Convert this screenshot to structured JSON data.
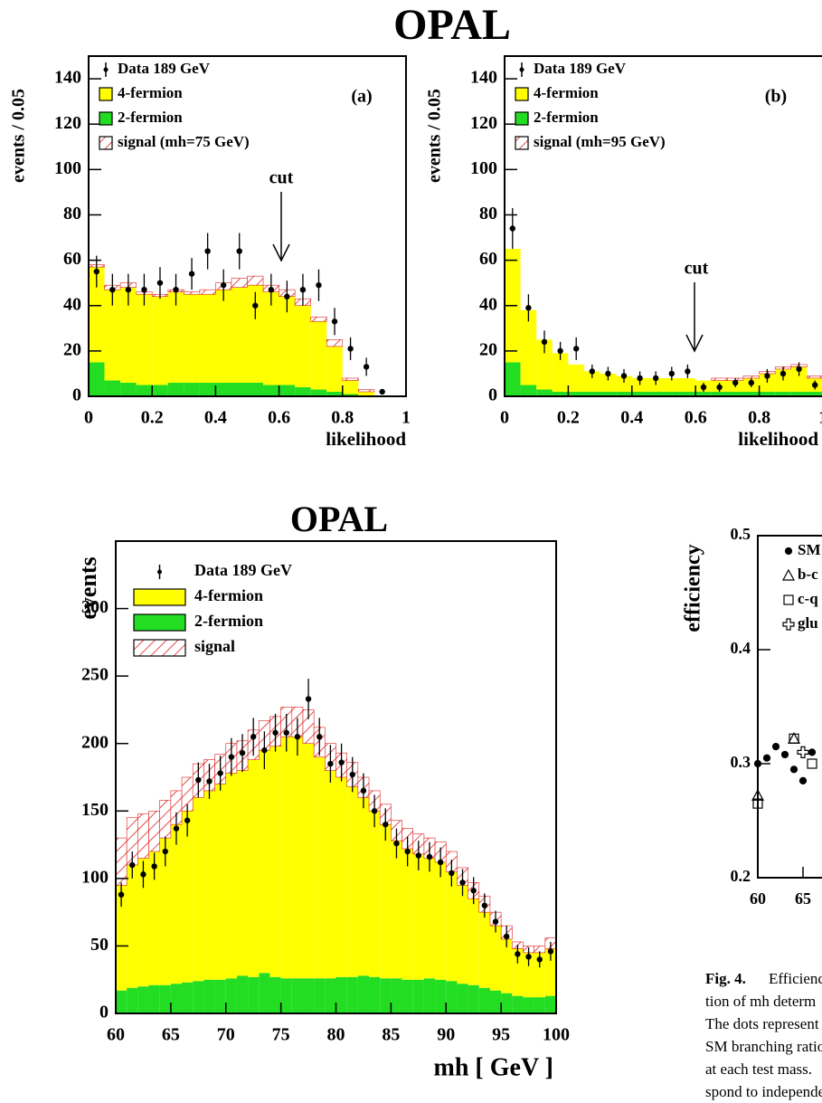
{
  "chart_data": [
    {
      "type": "histogram",
      "title": "OPAL",
      "y_label": "events / 0.05",
      "x_label": "likelihood",
      "annotations": [
        "(a)",
        "cut"
      ],
      "bins": [
        0,
        0.05,
        0.1,
        0.15,
        0.2,
        0.25,
        0.3,
        0.35,
        0.4,
        0.45,
        0.5,
        0.55,
        0.6,
        0.65,
        0.7,
        0.75,
        0.8,
        0.85,
        0.9,
        0.95,
        1
      ],
      "xlim": [
        0,
        1
      ],
      "xticks": [
        0,
        0.2,
        0.4,
        0.6,
        0.8,
        1
      ],
      "ylim": [
        0,
        150
      ],
      "yticks": [
        0,
        20,
        40,
        60,
        80,
        100,
        120,
        140
      ],
      "series": [
        {
          "name": "Data 189 GeV",
          "color": "#000000",
          "style": "points",
          "values": [
            55,
            47,
            47,
            47,
            50,
            47,
            54,
            64,
            49,
            64,
            40,
            47,
            44,
            47,
            49,
            33,
            21,
            13,
            2,
            null
          ],
          "errors": [
            7,
            7,
            7,
            7,
            7,
            7,
            7,
            8,
            7,
            8,
            6,
            7,
            7,
            7,
            7,
            6,
            5,
            4,
            1,
            null
          ]
        },
        {
          "name": "4-fermion",
          "color": "#ffff00",
          "values": [
            42,
            40,
            42,
            40,
            39,
            40,
            39,
            39,
            41,
            42,
            43,
            41,
            39,
            36,
            30,
            20,
            6,
            2,
            0,
            0
          ]
        },
        {
          "name": "2-fermion",
          "color": "#22dd22",
          "values": [
            15,
            7,
            6,
            5,
            5,
            6,
            6,
            6,
            6,
            6,
            6,
            5,
            5,
            4,
            3,
            2,
            1,
            0,
            0,
            0
          ]
        },
        {
          "name": "signal (mh=75 GeV)",
          "color": "#e02020",
          "hatch": true,
          "values": [
            1,
            2,
            2,
            1,
            1,
            1,
            1,
            2,
            3,
            4,
            4,
            3,
            3,
            3,
            2,
            3,
            1,
            1,
            0,
            0
          ]
        }
      ]
    },
    {
      "type": "histogram",
      "y_label": "events / 0.05",
      "x_label": "likelihood",
      "annotations": [
        "(b)",
        "cut"
      ],
      "bins": [
        0,
        0.05,
        0.1,
        0.15,
        0.2,
        0.25,
        0.3,
        0.35,
        0.4,
        0.45,
        0.5,
        0.55,
        0.6,
        0.65,
        0.7,
        0.75,
        0.8,
        0.85,
        0.9,
        0.95,
        1
      ],
      "xlim": [
        0,
        1
      ],
      "xticks": [
        0,
        0.2,
        0.4,
        0.6,
        0.8,
        1
      ],
      "ylim": [
        0,
        150
      ],
      "yticks": [
        0,
        20,
        40,
        60,
        80,
        100,
        120,
        140
      ],
      "series": [
        {
          "name": "Data 189 GeV",
          "color": "#000000",
          "style": "points",
          "values": [
            74,
            39,
            24,
            20,
            21,
            11,
            10,
            9,
            8,
            8,
            10,
            11,
            4,
            4,
            6,
            6,
            9,
            10,
            12,
            5
          ],
          "errors": [
            9,
            6,
            5,
            4,
            5,
            3,
            3,
            3,
            3,
            3,
            3,
            3,
            2,
            2,
            2,
            2,
            3,
            3,
            3,
            2
          ]
        },
        {
          "name": "4-fermion",
          "color": "#ffff00",
          "values": [
            50,
            33,
            22,
            17,
            12,
            9,
            8,
            7,
            6,
            6,
            6,
            6,
            5,
            5,
            5,
            6,
            8,
            10,
            11,
            6
          ]
        },
        {
          "name": "2-fermion",
          "color": "#22dd22",
          "values": [
            15,
            5,
            3,
            2,
            2,
            2,
            2,
            2,
            2,
            2,
            2,
            2,
            2,
            2,
            2,
            2,
            2,
            2,
            2,
            2
          ]
        },
        {
          "name": "signal (mh=95 GeV)",
          "color": "#e02020",
          "hatch": true,
          "values": [
            0,
            0,
            0,
            0,
            0,
            0,
            0,
            0,
            0,
            0,
            0,
            0,
            0,
            1,
            1,
            1,
            1,
            1,
            1,
            1
          ]
        }
      ]
    },
    {
      "type": "histogram",
      "title": "OPAL",
      "y_label": "events",
      "x_label": "mh [ GeV ]",
      "bins": [
        60,
        61,
        62,
        63,
        64,
        65,
        66,
        67,
        68,
        69,
        70,
        71,
        72,
        73,
        74,
        75,
        76,
        77,
        78,
        79,
        80,
        81,
        82,
        83,
        84,
        85,
        86,
        87,
        88,
        89,
        90,
        91,
        92,
        93,
        94,
        95,
        96,
        97,
        98,
        99,
        100
      ],
      "xlim": [
        60,
        100
      ],
      "xticks": [
        60,
        65,
        70,
        75,
        80,
        85,
        90,
        95,
        100
      ],
      "ylim": [
        0,
        350
      ],
      "yticks": [
        0,
        50,
        100,
        150,
        200,
        250,
        300
      ],
      "series": [
        {
          "name": "Data 189 GeV",
          "color": "#000000",
          "style": "points",
          "values": [
            88,
            110,
            103,
            109,
            120,
            137,
            143,
            173,
            172,
            178,
            190,
            193,
            205,
            195,
            208,
            208,
            205,
            233,
            205,
            185,
            186,
            177,
            165,
            150,
            140,
            126,
            120,
            117,
            116,
            112,
            104,
            97,
            91,
            80,
            68,
            57,
            44,
            42,
            40,
            46
          ],
          "errors": [
            9,
            10,
            10,
            10,
            11,
            12,
            12,
            13,
            13,
            13,
            14,
            14,
            14,
            14,
            14,
            14,
            14,
            15,
            14,
            14,
            14,
            13,
            13,
            12,
            12,
            11,
            11,
            11,
            11,
            11,
            10,
            10,
            10,
            9,
            8,
            8,
            7,
            7,
            6,
            7
          ]
        },
        {
          "name": "4-fermion",
          "color": "#ffff00",
          "values": [
            78,
            91,
            95,
            99,
            109,
            118,
            127,
            136,
            140,
            145,
            152,
            152,
            161,
            165,
            171,
            179,
            179,
            174,
            164,
            154,
            148,
            141,
            132,
            123,
            114,
            102,
            97,
            93,
            89,
            87,
            81,
            73,
            64,
            56,
            48,
            40,
            35,
            33,
            33,
            35
          ]
        },
        {
          "name": "2-fermion",
          "color": "#22dd22",
          "values": [
            17,
            19,
            20,
            21,
            21,
            22,
            23,
            24,
            25,
            25,
            26,
            28,
            27,
            30,
            27,
            26,
            26,
            26,
            26,
            26,
            27,
            27,
            28,
            27,
            26,
            26,
            25,
            25,
            26,
            25,
            24,
            22,
            21,
            19,
            17,
            15,
            13,
            12,
            12,
            13
          ]
        },
        {
          "name": "signal",
          "color": "#e02020",
          "hatch": true,
          "values": [
            35,
            35,
            33,
            30,
            28,
            25,
            25,
            25,
            23,
            22,
            22,
            22,
            22,
            22,
            22,
            22,
            22,
            25,
            22,
            20,
            18,
            18,
            15,
            15,
            15,
            15,
            15,
            15,
            15,
            15,
            15,
            13,
            12,
            12,
            10,
            10,
            5,
            5,
            5,
            8
          ]
        }
      ]
    },
    {
      "type": "scatter",
      "y_label": "efficiency",
      "xlim": [
        60,
        100
      ],
      "xticks": [
        60,
        65
      ],
      "ylim": [
        0.2,
        0.5
      ],
      "yticks": [
        0.2,
        0.3,
        0.4,
        0.5
      ],
      "series": [
        {
          "name": "SM",
          "color": "#000000",
          "marker": "dot",
          "x": [
            60,
            61,
            62,
            63,
            64,
            65,
            66
          ],
          "values": [
            0.3,
            0.305,
            0.315,
            0.308,
            0.295,
            0.285,
            0.31
          ]
        },
        {
          "name": "b-c",
          "color": "#000000",
          "marker": "triangle",
          "x": [
            60,
            64
          ],
          "values": [
            0.272,
            0.322
          ]
        },
        {
          "name": "c-q",
          "color": "#000000",
          "marker": "square",
          "x": [
            60,
            64,
            66
          ],
          "values": [
            0.265,
            0.322,
            0.3
          ]
        },
        {
          "name": "glu",
          "color": "#000000",
          "marker": "cross",
          "x": [
            65
          ],
          "values": [
            0.31
          ]
        }
      ]
    }
  ],
  "caption": {
    "label": "Fig. 4.",
    "lines": [
      "Efficiency",
      "tion of mh determ",
      "The dots represent",
      "SM branching ratio",
      "at each test mass.",
      "spond to independe"
    ]
  }
}
